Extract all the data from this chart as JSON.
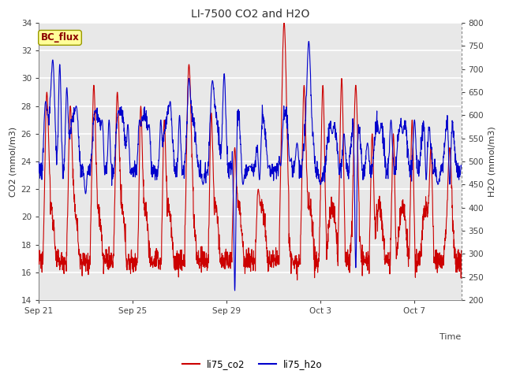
{
  "title": "LI-7500 CO2 and H2O",
  "xlabel": "Time",
  "ylabel_left": "CO2 (mmol/m3)",
  "ylabel_right": "H2O (mmol/m3)",
  "ylim_left": [
    14,
    34
  ],
  "ylim_right": [
    200,
    800
  ],
  "yticks_left": [
    14,
    16,
    18,
    20,
    22,
    24,
    26,
    28,
    30,
    32,
    34
  ],
  "yticks_right": [
    200,
    250,
    300,
    350,
    400,
    450,
    500,
    550,
    600,
    650,
    700,
    750,
    800
  ],
  "xtick_labels": [
    "Sep 21",
    "Sep 25",
    "Sep 29",
    "Oct 3",
    "Oct 7"
  ],
  "xtick_positions": [
    0,
    4,
    8,
    12,
    16
  ],
  "color_co2": "#cc0000",
  "color_h2o": "#0000cc",
  "plot_bg": "#e8e8e8",
  "grid_color": "#ffffff",
  "annotation_text": "BC_flux",
  "annotation_bg": "#ffff99",
  "annotation_border": "#999900",
  "legend_labels": [
    "li75_co2",
    "li75_h2o"
  ]
}
